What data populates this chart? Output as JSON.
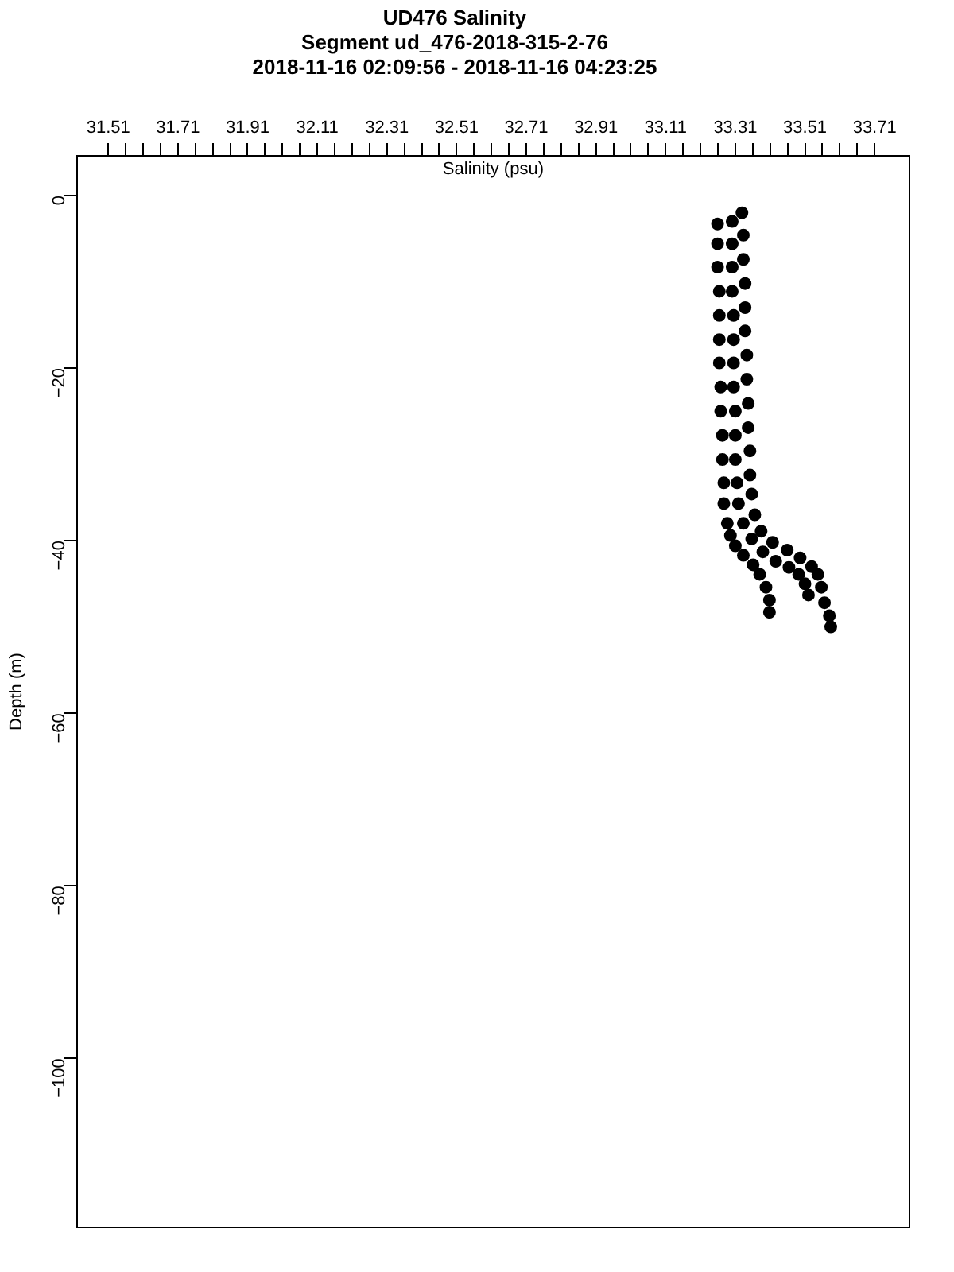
{
  "chart_data": {
    "type": "scatter",
    "title": "UD476 Salinity",
    "subtitle": "Segment ud_476-2018-315-2-76\n2018-11-16 02:09:56 - 2018-11-16 04:23:25",
    "xlabel": "Salinity (psu)",
    "ylabel": "Depth (m)",
    "xlim": [
      31.42,
      33.81
    ],
    "ylim": [
      -119.6,
      4.6
    ],
    "xticks": [
      31.51,
      {
        "value": 31.56,
        "label": null
      },
      {
        "value": 31.61,
        "label": null
      },
      {
        "value": 31.66,
        "label": null
      },
      31.71,
      {
        "value": 31.76,
        "label": null
      },
      {
        "value": 31.81,
        "label": null
      },
      {
        "value": 31.86,
        "label": null
      },
      31.91,
      {
        "value": 31.96,
        "label": null
      },
      {
        "value": 32.01,
        "label": null
      },
      {
        "value": 32.06,
        "label": null
      },
      32.11,
      {
        "value": 32.16,
        "label": null
      },
      {
        "value": 32.21,
        "label": null
      },
      {
        "value": 32.26,
        "label": null
      },
      32.31,
      {
        "value": 32.36,
        "label": null
      },
      {
        "value": 32.41,
        "label": null
      },
      {
        "value": 32.46,
        "label": null
      },
      32.51,
      {
        "value": 32.56,
        "label": null
      },
      {
        "value": 32.61,
        "label": null
      },
      {
        "value": 32.66,
        "label": null
      },
      32.71,
      {
        "value": 32.76,
        "label": null
      },
      {
        "value": 32.81,
        "label": null
      },
      {
        "value": 32.86,
        "label": null
      },
      32.91,
      {
        "value": 32.96,
        "label": null
      },
      {
        "value": 33.01,
        "label": null
      },
      {
        "value": 33.06,
        "label": null
      },
      33.11,
      {
        "value": 33.16,
        "label": null
      },
      {
        "value": 33.21,
        "label": null
      },
      {
        "value": 33.26,
        "label": null
      },
      33.31,
      {
        "value": 33.36,
        "label": null
      },
      {
        "value": 33.41,
        "label": null
      },
      {
        "value": 33.46,
        "label": null
      },
      33.51,
      {
        "value": 33.56,
        "label": null
      },
      {
        "value": 33.61,
        "label": null
      },
      {
        "value": 33.66,
        "label": null
      },
      33.71
    ],
    "yticks": [
      0,
      -20,
      -40,
      -60,
      -80,
      -100
    ],
    "grid": false,
    "legend": false,
    "marker": "circle",
    "series": [
      {
        "color": "#000000",
        "x": [
          33.259,
          33.259,
          33.259,
          33.264,
          33.264,
          33.264,
          33.264,
          33.268,
          33.268,
          33.273,
          33.273,
          33.277,
          33.277,
          33.287,
          33.296,
          33.31,
          33.333,
          33.361,
          33.38,
          33.398,
          33.408,
          33.408
        ],
        "values": [
          -3.3,
          -5.6,
          -8.3,
          -11.1,
          -13.9,
          -16.7,
          -19.4,
          -22.2,
          -25,
          -27.8,
          -30.6,
          -33.3,
          -35.7,
          -38,
          -39.4,
          -40.6,
          -41.7,
          -42.8,
          -43.9,
          -45.4,
          -46.9,
          -48.3
        ]
      },
      {
        "color": "#000000",
        "x": [
          33.301,
          33.301,
          33.301,
          33.301,
          33.305,
          33.305,
          33.305,
          33.305,
          33.31,
          33.31,
          33.31,
          33.315,
          33.319,
          33.333,
          33.357,
          33.389,
          33.426,
          33.464,
          33.492,
          33.51,
          33.52
        ],
        "values": [
          -3,
          -5.6,
          -8.3,
          -11.1,
          -13.9,
          -16.7,
          -19.4,
          -22.2,
          -25,
          -27.8,
          -30.6,
          -33.3,
          -35.7,
          -38,
          -39.8,
          -41.3,
          -42.4,
          -43.1,
          -43.9,
          -45,
          -46.3
        ]
      },
      {
        "color": "#000000",
        "x": [
          33.329,
          33.333,
          33.333,
          33.338,
          33.338,
          33.338,
          33.343,
          33.343,
          33.347,
          33.347,
          33.352,
          33.352,
          33.357,
          33.366,
          33.384,
          33.417,
          33.459,
          33.496,
          33.529,
          33.547,
          33.557,
          33.566,
          33.58,
          33.584
        ],
        "values": [
          -2,
          -4.6,
          -7.4,
          -10.2,
          -13,
          -15.7,
          -18.5,
          -21.3,
          -24.1,
          -26.9,
          -29.6,
          -32.4,
          -34.6,
          -37,
          -38.9,
          -40.2,
          -41.1,
          -42,
          -43,
          -43.9,
          -45.4,
          -47.2,
          -48.7,
          -50
        ]
      }
    ]
  }
}
